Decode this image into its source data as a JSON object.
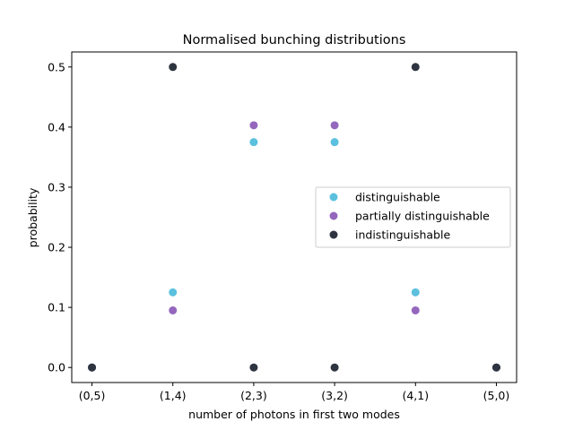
{
  "chart_data": {
    "type": "scatter",
    "title": "Normalised bunching distributions",
    "xlabel": "number of photons in first two modes",
    "ylabel": "probability",
    "categories": [
      "(0,5)",
      "(1,4)",
      "(2,3)",
      "(3,2)",
      "(4,1)",
      "(5,0)"
    ],
    "xlim": [
      -0.25,
      5.25
    ],
    "ylim": [
      -0.025,
      0.525
    ],
    "yticks": [
      0.0,
      0.1,
      0.2,
      0.3,
      0.4,
      0.5
    ],
    "ytick_labels": [
      "0.0",
      "0.1",
      "0.2",
      "0.3",
      "0.4",
      "0.5"
    ],
    "grid": false,
    "legend_position": "center-right",
    "series": [
      {
        "name": "distinguishable",
        "color": "#5bc0de",
        "values": [
          0.0,
          0.125,
          0.375,
          0.375,
          0.125,
          0.0
        ]
      },
      {
        "name": "partially distinguishable",
        "color": "#9467bd",
        "values": [
          0.0,
          0.095,
          0.403,
          0.403,
          0.095,
          0.0
        ]
      },
      {
        "name": "indistinguishable",
        "color": "#2e3440",
        "values": [
          0.0,
          0.5,
          0.0,
          0.0,
          0.5,
          0.0
        ]
      }
    ]
  }
}
